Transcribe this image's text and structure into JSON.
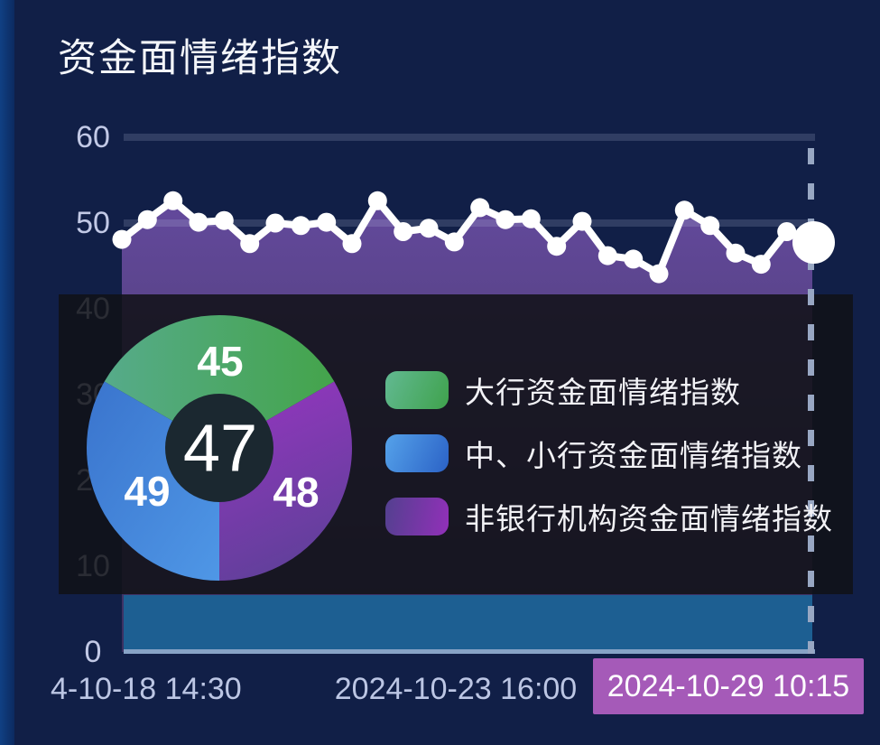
{
  "header": {
    "title": "资金面情绪指数"
  },
  "colors": {
    "background": "#111f47",
    "highlight_box": "#a55ab8",
    "band_blue": "#1d5f92",
    "axis_line": "#87a3c6",
    "grid_bar": "rgba(200,214,240,0.17)",
    "area_purple": "#5e4890",
    "line_white": "#ffffff",
    "donut_center_bg": "#1b2830"
  },
  "chart_data": [
    {
      "type": "area",
      "title": "资金面情绪指数",
      "xlabel": "",
      "ylabel": "",
      "ylim": [
        0,
        60
      ],
      "grid": true,
      "yticks": [
        "60",
        "50",
        "40",
        "30",
        "20",
        "10",
        "0"
      ],
      "xticks": [
        "4-10-18 14:30",
        "2024-10-23 16:00",
        "2024-10-29 10:15"
      ],
      "axis_pointer": "dashed-vertical-at-current-time",
      "series": [
        {
          "name": "非银行机构资金面情绪指数",
          "line_color": "#ffffff",
          "area_color": "#5e4890",
          "values": [
            48.1,
            50.4,
            52.6,
            50.1,
            50.3,
            47.6,
            50.0,
            49.7,
            50.1,
            47.6,
            52.6,
            49.0,
            49.4,
            47.8,
            51.8,
            50.4,
            50.5,
            47.3,
            50.2,
            46.2,
            45.8,
            44.1,
            51.5,
            49.7,
            46.5,
            45.2,
            49.0,
            47.5
          ]
        }
      ],
      "current_point_value": 47.5
    },
    {
      "type": "pie",
      "center_value": "47",
      "segments": [
        {
          "label": "大行资金面情绪指数",
          "value": "45",
          "color": "#45a44e"
        },
        {
          "label": "中、小行资金面情绪指数",
          "value": "49",
          "color": "#3b82d9"
        },
        {
          "label": "非银行机构资金面情绪指数",
          "value": "48",
          "color": "#8a39b4"
        }
      ]
    }
  ]
}
